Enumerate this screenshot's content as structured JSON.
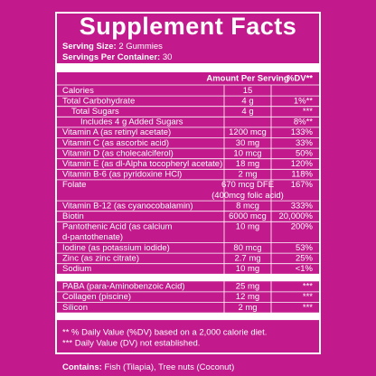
{
  "label": {
    "title": "Supplement Facts",
    "serving_size_label": "Serving Size:",
    "serving_size": "2 Gummies",
    "servings_label": "Servings Per Container:",
    "servings": "30",
    "header_amount": "Amount Per Serving",
    "header_dv": "%DV**",
    "rows": [
      {
        "name": [
          "Calories"
        ],
        "amount": [
          "15"
        ],
        "dv": "",
        "indent": 0
      },
      {
        "name": [
          "Total Carbohydrate"
        ],
        "amount": [
          "4 g"
        ],
        "dv": "1%**",
        "indent": 0
      },
      {
        "name": [
          "Total Sugars"
        ],
        "amount": [
          "4 g"
        ],
        "dv": "***",
        "indent": 1
      },
      {
        "name": [
          "Includes 4 g Added Sugars"
        ],
        "amount": [
          ""
        ],
        "dv": "8%**",
        "indent": 2
      },
      {
        "name": [
          "Vitamin A (as retinyl acetate)"
        ],
        "amount": [
          "1200 mcg"
        ],
        "dv": "133%",
        "indent": 0
      },
      {
        "name": [
          "Vitamin C (as ascorbic acid)"
        ],
        "amount": [
          "30 mg"
        ],
        "dv": "33%",
        "indent": 0
      },
      {
        "name": [
          "Vitamin D (as cholecalciferol)"
        ],
        "amount": [
          "10 mcg"
        ],
        "dv": "50%",
        "indent": 0
      },
      {
        "name": [
          "Vitamin E (as dl-Alpha tocopheryl acetate)"
        ],
        "amount": [
          "18 mg"
        ],
        "dv": "120%",
        "indent": 0
      },
      {
        "name": [
          "Vitamin B-6 (as pyridoxine HCl)"
        ],
        "amount": [
          "2 mg"
        ],
        "dv": "118%",
        "indent": 0
      },
      {
        "name": [
          "Folate"
        ],
        "amount": [
          "670 mcg DFE",
          "(400mcg folic acid)"
        ],
        "dv": "167%",
        "indent": 0
      },
      {
        "name": [
          "Vitamin B-12 (as cyanocobalamin)"
        ],
        "amount": [
          "8 mcg"
        ],
        "dv": "333%",
        "indent": 0
      },
      {
        "name": [
          "Biotin"
        ],
        "amount": [
          "6000 mcg"
        ],
        "dv": "20,000%",
        "indent": 0
      },
      {
        "name": [
          "Pantothenic Acid (as calcium",
          "d-pantothenate)"
        ],
        "amount": [
          "10 mg"
        ],
        "dv": "200%",
        "indent": 0
      },
      {
        "name": [
          "Iodine (as potassium iodide)"
        ],
        "amount": [
          "80 mcg"
        ],
        "dv": "53%",
        "indent": 0
      },
      {
        "name": [
          "Zinc (as zinc citrate)"
        ],
        "amount": [
          "2.7 mg"
        ],
        "dv": "25%",
        "indent": 0
      },
      {
        "name": [
          "Sodium"
        ],
        "amount": [
          "10 mg"
        ],
        "dv": "<1%",
        "indent": 0
      }
    ],
    "other_rows": [
      {
        "name": [
          "PABA (para-Aminobenzoic Acid)"
        ],
        "amount": [
          "25 mg"
        ],
        "dv": "***",
        "indent": 0
      },
      {
        "name": [
          "Collagen (piscine)"
        ],
        "amount": [
          "12 mg"
        ],
        "dv": "***",
        "indent": 0
      },
      {
        "name": [
          "Silicon"
        ],
        "amount": [
          "2 mg"
        ],
        "dv": "***",
        "indent": 0
      }
    ],
    "footnotes": [
      "** % Daily Value (%DV) based on a 2,000 calorie diet.",
      "*** Daily Value (DV) not established."
    ],
    "contains_label": "Contains:",
    "contains": "Fish (Tilapia), Tree nuts (Coconut)"
  }
}
